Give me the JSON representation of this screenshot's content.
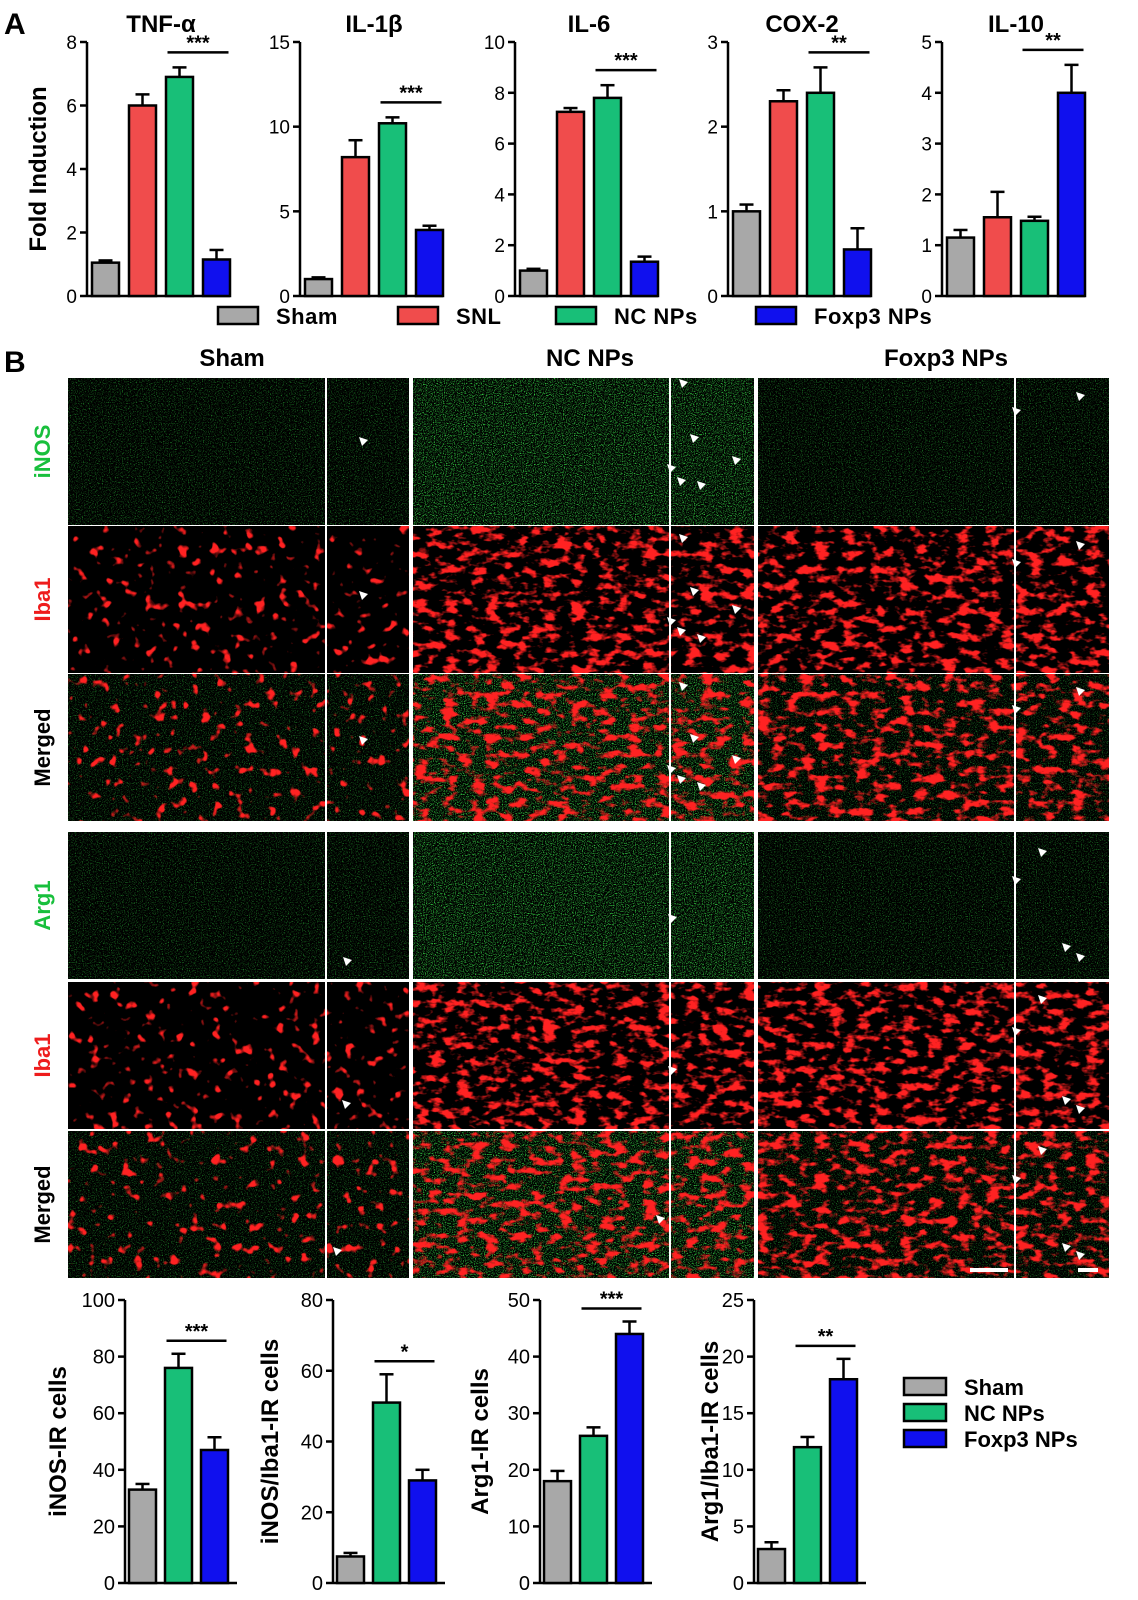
{
  "panel_letters": [
    "A",
    "B"
  ],
  "colors": {
    "Sham": "#a8a8a8",
    "SNL": "#f04c4c",
    "NC NPs": "#18bf78",
    "Foxp3 NPs": "#1010ee"
  },
  "legend_a": [
    "Sham",
    "SNL",
    "NC NPs",
    "Foxp3 NPs"
  ],
  "legend_c": [
    "Sham",
    "NC NPs",
    "Foxp3 NPs"
  ],
  "micro": {
    "columns": [
      "Sham",
      "NC NPs",
      "Foxp3 NPs"
    ],
    "rows": [
      {
        "label": "iNOS",
        "color": "#18bf3c",
        "stain": "green"
      },
      {
        "label": "Iba1",
        "color": "#ee1c1c",
        "stain": "red"
      },
      {
        "label": "Merged",
        "color": "#000000",
        "stain": "merged"
      },
      {
        "label": "Arg1",
        "color": "#18bf3c",
        "stain": "green"
      },
      {
        "label": "Iba1",
        "color": "#ee1c1c",
        "stain": "red"
      },
      {
        "label": "Merged",
        "color": "#000000",
        "stain": "merged"
      }
    ]
  },
  "chart_data": [
    {
      "type": "bar",
      "panel": "A",
      "title": "TNF-α",
      "ylabel": "Fold Induction",
      "ylim": [
        0,
        8
      ],
      "ticks": [
        0,
        2,
        4,
        6,
        8
      ],
      "categories": [
        "Sham",
        "SNL",
        "NC NPs",
        "Foxp3 NPs"
      ],
      "values": [
        1.05,
        6.0,
        6.9,
        1.15
      ],
      "errors": [
        0.07,
        0.35,
        0.3,
        0.3
      ],
      "significance": {
        "label": "***",
        "between": [
          "NC NPs",
          "Foxp3 NPs"
        ]
      }
    },
    {
      "type": "bar",
      "panel": "A",
      "title": "IL-1β",
      "ylim": [
        0,
        15
      ],
      "ticks": [
        0,
        5,
        10,
        15
      ],
      "categories": [
        "Sham",
        "SNL",
        "NC NPs",
        "Foxp3 NPs"
      ],
      "values": [
        1.0,
        8.2,
        10.2,
        3.9
      ],
      "errors": [
        0.1,
        1.0,
        0.35,
        0.25
      ],
      "significance": {
        "label": "***",
        "between": [
          "NC NPs",
          "Foxp3 NPs"
        ]
      }
    },
    {
      "type": "bar",
      "panel": "A",
      "title": "IL-6",
      "ylim": [
        0,
        10
      ],
      "ticks": [
        0,
        2,
        4,
        6,
        8,
        10
      ],
      "categories": [
        "Sham",
        "SNL",
        "NC NPs",
        "Foxp3 NPs"
      ],
      "values": [
        1.0,
        7.25,
        7.8,
        1.35
      ],
      "errors": [
        0.07,
        0.15,
        0.5,
        0.2
      ],
      "significance": {
        "label": "***",
        "between": [
          "NC NPs",
          "Foxp3 NPs"
        ]
      }
    },
    {
      "type": "bar",
      "panel": "A",
      "title": "COX-2",
      "ylim": [
        0,
        3
      ],
      "ticks": [
        0,
        1,
        2,
        3
      ],
      "categories": [
        "Sham",
        "SNL",
        "NC NPs",
        "Foxp3 NPs"
      ],
      "values": [
        1.0,
        2.3,
        2.4,
        0.55
      ],
      "errors": [
        0.08,
        0.13,
        0.3,
        0.25
      ],
      "significance": {
        "label": "**",
        "between": [
          "NC NPs",
          "Foxp3 NPs"
        ]
      }
    },
    {
      "type": "bar",
      "panel": "A",
      "title": "IL-10",
      "ylim": [
        0,
        5
      ],
      "ticks": [
        0,
        1,
        2,
        3,
        4,
        5
      ],
      "categories": [
        "Sham",
        "SNL",
        "NC NPs",
        "Foxp3 NPs"
      ],
      "values": [
        1.15,
        1.55,
        1.48,
        4.0
      ],
      "errors": [
        0.15,
        0.5,
        0.08,
        0.55
      ],
      "significance": {
        "label": "**",
        "between": [
          "NC NPs",
          "Foxp3 NPs"
        ]
      }
    },
    {
      "type": "bar",
      "panel": "C",
      "ylabel": "iNOS-IR cells",
      "ylim": [
        0,
        100
      ],
      "ticks": [
        0,
        20,
        40,
        60,
        80,
        100
      ],
      "categories": [
        "Sham",
        "NC NPs",
        "Foxp3 NPs"
      ],
      "values": [
        33,
        76,
        47
      ],
      "errors": [
        2,
        5,
        4.5
      ],
      "significance": {
        "label": "***",
        "between": [
          "NC NPs",
          "Foxp3 NPs"
        ]
      }
    },
    {
      "type": "bar",
      "panel": "C",
      "ylabel": "iNOS/Iba1-IR cells",
      "ylim": [
        0,
        80
      ],
      "ticks": [
        0,
        20,
        40,
        60,
        80
      ],
      "categories": [
        "Sham",
        "NC NPs",
        "Foxp3 NPs"
      ],
      "values": [
        7.5,
        51,
        29
      ],
      "errors": [
        1,
        8,
        3
      ],
      "significance": {
        "label": "*",
        "between": [
          "NC NPs",
          "Foxp3 NPs"
        ]
      }
    },
    {
      "type": "bar",
      "panel": "C",
      "ylabel": "Arg1-IR cells",
      "ylim": [
        0,
        50
      ],
      "ticks": [
        0,
        10,
        20,
        30,
        40,
        50
      ],
      "categories": [
        "Sham",
        "NC NPs",
        "Foxp3 NPs"
      ],
      "values": [
        18,
        26,
        44
      ],
      "errors": [
        1.8,
        1.5,
        2.2
      ],
      "significance": {
        "label": "***",
        "between": [
          "NC NPs",
          "Foxp3 NPs"
        ]
      }
    },
    {
      "type": "bar",
      "panel": "C",
      "ylabel": "Arg1/Iba1-IR cells",
      "ylim": [
        0,
        25
      ],
      "ticks": [
        0,
        5,
        10,
        15,
        20,
        25
      ],
      "categories": [
        "Sham",
        "NC NPs",
        "Foxp3 NPs"
      ],
      "values": [
        3,
        12,
        18
      ],
      "errors": [
        0.6,
        0.9,
        1.8
      ],
      "significance": {
        "label": "**",
        "between": [
          "NC NPs",
          "Foxp3 NPs"
        ]
      }
    }
  ]
}
